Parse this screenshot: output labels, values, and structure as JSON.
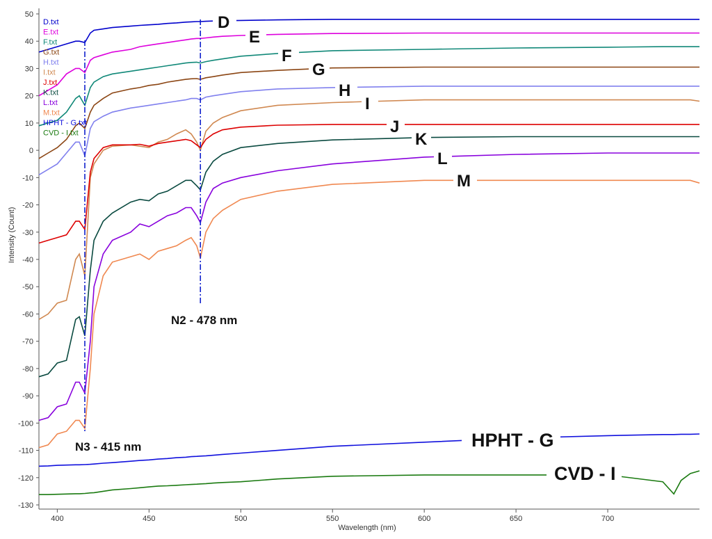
{
  "chart_data": {
    "type": "line",
    "title": "",
    "xlabel": "Wavelength (nm)",
    "ylabel": "Intensity (Count)",
    "xlim": [
      390,
      750
    ],
    "ylim": [
      -130,
      50
    ],
    "xticks": [
      "400",
      "450",
      "500",
      "550",
      "600",
      "650",
      "700"
    ],
    "yticks": [
      "50",
      "40",
      "30",
      "20",
      "10",
      "0",
      "-10",
      "-20",
      "-30",
      "-40",
      "-50",
      "-60",
      "-70",
      "-80",
      "-90",
      "-100",
      "-110",
      "-120",
      "-130"
    ],
    "grid": false,
    "legend_position": "top-left",
    "x": [
      390,
      395,
      400,
      405,
      410,
      412,
      415,
      418,
      420,
      425,
      430,
      440,
      445,
      450,
      455,
      460,
      465,
      470,
      473,
      476,
      478,
      481,
      485,
      490,
      500,
      520,
      550,
      600,
      650,
      700,
      730,
      736,
      740,
      745,
      750
    ],
    "series": [
      {
        "name": "D.txt",
        "color": "#0000cc",
        "values": [
          36,
          37,
          38,
          39,
          40,
          40,
          39.5,
          43,
          44,
          44.5,
          45,
          45.5,
          45.8,
          46,
          46.2,
          46.5,
          46.7,
          47,
          47.1,
          47.2,
          47.2,
          47.3,
          47.4,
          47.5,
          47.6,
          47.8,
          48,
          48,
          48,
          48,
          48,
          48,
          48,
          48,
          48
        ]
      },
      {
        "name": "E.txt",
        "color": "#dd00dd",
        "values": [
          20,
          22,
          24,
          28,
          30,
          30,
          28.5,
          33,
          34,
          35,
          36,
          37,
          38,
          38.5,
          39,
          39.5,
          40,
          40.5,
          40.8,
          41,
          41,
          41.2,
          41.5,
          41.8,
          42.1,
          42.5,
          42.8,
          43,
          43,
          43,
          43,
          43,
          43,
          43,
          43
        ]
      },
      {
        "name": "F.txt",
        "color": "#108878",
        "values": [
          9,
          10,
          11,
          14,
          19,
          20,
          16.5,
          23,
          25,
          27,
          28,
          29,
          29.5,
          30,
          30.5,
          31,
          31.5,
          32,
          32.2,
          32.3,
          32,
          32.5,
          33,
          33.5,
          34.5,
          35.5,
          36.5,
          37,
          37.5,
          37.8,
          38,
          38,
          38,
          38,
          38
        ]
      },
      {
        "name": "G.txt",
        "color": "#8b4513",
        "values": [
          -3,
          -1,
          1,
          4,
          9,
          10,
          8,
          14,
          16.5,
          19,
          21,
          22.5,
          23,
          23.8,
          24.2,
          25,
          25.5,
          26,
          26.2,
          26.3,
          26,
          26.6,
          27,
          27.6,
          28.5,
          29.3,
          30.2,
          30.5,
          30.5,
          30.5,
          30.5,
          30.5,
          30.5,
          30.5,
          30.5
        ]
      },
      {
        "name": "H.txt",
        "color": "#8080ee",
        "values": [
          -9,
          -7,
          -5,
          -1,
          3,
          3,
          -2,
          8,
          10.5,
          12.5,
          14,
          15.5,
          16,
          16.5,
          17,
          17.5,
          18,
          18.5,
          19,
          19,
          18.5,
          19.5,
          20,
          20.5,
          21.5,
          22.5,
          23,
          23.5,
          23.5,
          23.5,
          23.5,
          23.5,
          23.5,
          23.5,
          23.5
        ]
      },
      {
        "name": "I.txt",
        "color": "#d08850",
        "values": [
          -62,
          -60,
          -56,
          -55,
          -40,
          -38,
          -46,
          -10,
          -5,
          0,
          1.5,
          2,
          1.5,
          1,
          3,
          4,
          6,
          7.5,
          6,
          3,
          0,
          7,
          10,
          12,
          14.5,
          16.5,
          17.5,
          18.5,
          18.5,
          18.5,
          18.5,
          18.5,
          18.5,
          18.5,
          18
        ]
      },
      {
        "name": "J.txt",
        "color": "#dd0000",
        "values": [
          -34,
          -33,
          -32,
          -31,
          -26,
          -26,
          -29,
          -8,
          -3,
          1,
          2,
          2,
          2.2,
          1.5,
          2.5,
          3,
          3.5,
          4,
          3.5,
          2,
          1,
          4,
          6,
          7.5,
          8.5,
          9.2,
          9.5,
          9.5,
          9.5,
          9.5,
          9.5,
          9.5,
          9.5,
          9.5,
          9.5
        ]
      },
      {
        "name": "K.txt",
        "color": "#0a4a40",
        "values": [
          -83,
          -82,
          -78,
          -77,
          -62,
          -61,
          -68,
          -44,
          -33,
          -26,
          -23,
          -19,
          -18,
          -18.5,
          -16,
          -15,
          -13,
          -11,
          -11,
          -13,
          -14.5,
          -8,
          -4,
          -1.5,
          1,
          2.5,
          3.8,
          4.7,
          5,
          5,
          5,
          5,
          5,
          5,
          5
        ]
      },
      {
        "name": "L.txt",
        "color": "#8800dd",
        "values": [
          -99,
          -98,
          -94,
          -93,
          -85,
          -85,
          -89,
          -70,
          -50,
          -38,
          -33,
          -30,
          -27,
          -28,
          -26,
          -24,
          -23,
          -21,
          -21,
          -24,
          -26.5,
          -19,
          -14,
          -12,
          -10,
          -7.5,
          -5,
          -2.5,
          -1.5,
          -1,
          -1,
          -1,
          -1,
          -1,
          -1
        ]
      },
      {
        "name": "M.txt",
        "color": "#f08850",
        "values": [
          -109,
          -108,
          -104,
          -103,
          -99,
          -99,
          -102,
          -80,
          -60,
          -46,
          -41,
          -39,
          -38,
          -40,
          -37,
          -36,
          -35,
          -33,
          -32,
          -35,
          -39.5,
          -30,
          -25,
          -22,
          -18,
          -15,
          -12.5,
          -11,
          -11,
          -11,
          -11,
          -11,
          -11,
          -11,
          -12
        ]
      },
      {
        "name": "HPHT  - G.txt",
        "color": "#1010dd",
        "values": [
          -115.8,
          -115.7,
          -115.5,
          -115.4,
          -115.3,
          -115.3,
          -115.2,
          -115.1,
          -115,
          -114.7,
          -114.5,
          -114,
          -113.7,
          -113.5,
          -113.2,
          -113,
          -112.7,
          -112.5,
          -112.3,
          -112.2,
          -112.1,
          -112,
          -111.8,
          -111.5,
          -111,
          -110,
          -108.5,
          -107,
          -105.5,
          -104.6,
          -104.2,
          -104.2,
          -104.1,
          -104.1,
          -104
        ]
      },
      {
        "name": "CVD - I.txt",
        "color": "#1a7a10",
        "values": [
          -126.2,
          -126.2,
          -126.1,
          -126,
          -125.9,
          -125.9,
          -125.8,
          -125.6,
          -125.5,
          -125,
          -124.5,
          -124,
          -123.7,
          -123.4,
          -123.1,
          -123,
          -122.8,
          -122.6,
          -122.5,
          -122.4,
          -122.3,
          -122.2,
          -122,
          -121.8,
          -121.5,
          -120.5,
          -119.5,
          -119,
          -119,
          -119,
          -121.5,
          -126,
          -121,
          -118.5,
          -117.5
        ]
      }
    ],
    "annotations": [
      {
        "text": "N3 - 415 nm",
        "x": 415
      },
      {
        "text": "N2 - 478 nm",
        "x": 478
      }
    ],
    "series_labels": [
      "D",
      "E",
      "F",
      "G",
      "H",
      "I",
      "J",
      "K",
      "L",
      "M",
      "HPHT - G",
      "CVD - I"
    ]
  }
}
